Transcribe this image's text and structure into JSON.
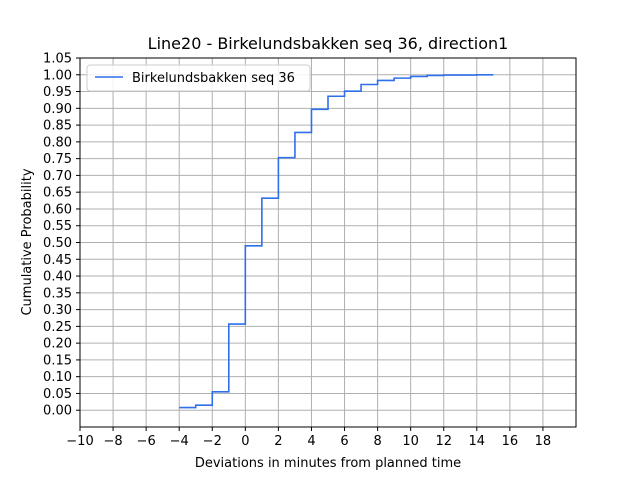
{
  "chart_data": {
    "type": "line",
    "title": "Line20 - Birkelundsbakken seq 36, direction1",
    "xlabel": "Deviations in minutes from planned time",
    "ylabel": "Cumulative Probability",
    "xlim": [
      -10,
      20
    ],
    "ylim": [
      -0.05,
      1.05
    ],
    "xticks": [
      -10,
      -8,
      -6,
      -4,
      -2,
      0,
      2,
      4,
      6,
      8,
      10,
      12,
      14,
      16,
      18
    ],
    "xtick_labels": [
      "−10",
      "−8",
      "−6",
      "−4",
      "−2",
      "0",
      "2",
      "4",
      "6",
      "8",
      "10",
      "12",
      "14",
      "16",
      "18"
    ],
    "yticks": [
      0.0,
      0.05,
      0.1,
      0.15,
      0.2,
      0.25,
      0.3,
      0.35,
      0.4,
      0.45,
      0.5,
      0.55,
      0.6,
      0.65,
      0.7,
      0.75,
      0.8,
      0.85,
      0.9,
      0.95,
      1.0,
      1.05
    ],
    "ytick_labels": [
      "0.00",
      "0.05",
      "0.10",
      "0.15",
      "0.20",
      "0.25",
      "0.30",
      "0.35",
      "0.40",
      "0.45",
      "0.50",
      "0.55",
      "0.60",
      "0.65",
      "0.70",
      "0.75",
      "0.80",
      "0.85",
      "0.90",
      "0.95",
      "1.00",
      "1.05"
    ],
    "grid": true,
    "legend_position": "top-left",
    "series": [
      {
        "name": "Birkelundsbakken seq 36",
        "color": "#2f6fea",
        "step": "post",
        "x": [
          -4,
          -3,
          -2,
          -1,
          0,
          1,
          2,
          3,
          4,
          5,
          6,
          7,
          8,
          9,
          10,
          11,
          12,
          13,
          14,
          15
        ],
        "y": [
          0.008,
          0.015,
          0.055,
          0.257,
          0.49,
          0.632,
          0.753,
          0.828,
          0.897,
          0.936,
          0.951,
          0.971,
          0.983,
          0.99,
          0.995,
          0.998,
          0.999,
          0.999,
          1.0,
          1.0
        ]
      }
    ]
  }
}
